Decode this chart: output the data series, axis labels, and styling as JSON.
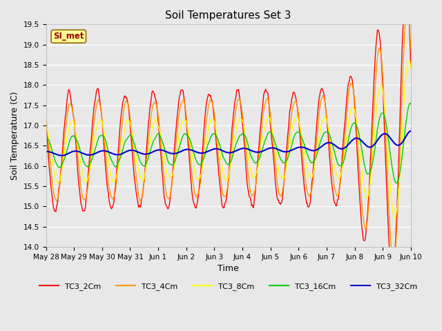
{
  "title": "Soil Temperatures Set 3",
  "xlabel": "Time",
  "ylabel": "Soil Temperature (C)",
  "ylim": [
    14.0,
    19.5
  ],
  "yticks": [
    14.0,
    14.5,
    15.0,
    15.5,
    16.0,
    16.5,
    17.0,
    17.5,
    18.0,
    18.5,
    19.0,
    19.5
  ],
  "background_color": "#e8e8e8",
  "plot_bg_color": "#e8e8e8",
  "series_colors": {
    "TC3_2Cm": "#ff0000",
    "TC3_4Cm": "#ff9900",
    "TC3_8Cm": "#ffff00",
    "TC3_16Cm": "#00cc00",
    "TC3_32Cm": "#0000cc"
  },
  "annotation_text": "SI_met",
  "annotation_bg": "#ffff99",
  "annotation_border": "#996600",
  "annotation_text_color": "#990000",
  "xtick_labels": [
    "May 28",
    "May 29",
    "May 30",
    "May 31",
    "Jun 1",
    "Jun 2",
    "Jun 3",
    "Jun 4",
    "Jun 5",
    "Jun 6",
    "Jun 7",
    "Jun 8",
    "Jun 9",
    "Jun 10"
  ],
  "figsize": [
    6.4,
    4.8
  ],
  "dpi": 100
}
